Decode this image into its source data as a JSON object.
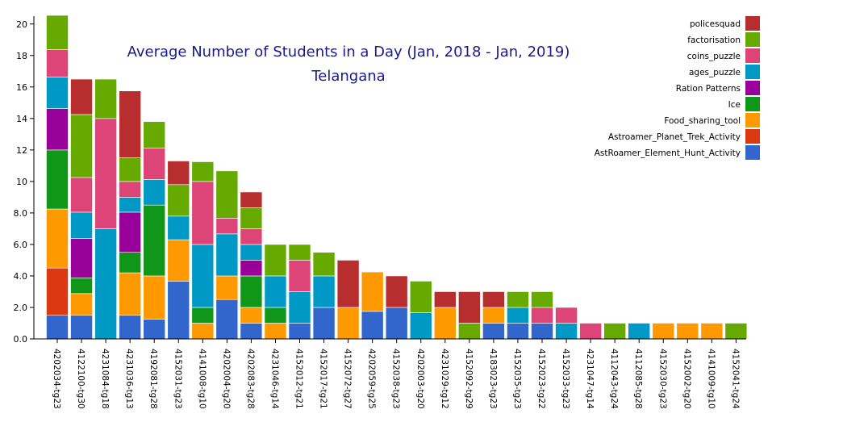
{
  "chart_data": {
    "type": "bar",
    "stacked": true,
    "title": "Average Number of Students in a Day (Jan, 2018 - Jan, 2019)",
    "subtitle": "Telangana",
    "ylim": [
      0,
      20.5
    ],
    "yticks": [
      "0.0",
      "2.0",
      "4.0",
      "6.0",
      "8.0",
      "10",
      "12",
      "14",
      "16",
      "18",
      "20"
    ],
    "yticks_values": [
      0,
      2,
      4,
      6,
      8,
      10,
      12,
      14,
      16,
      18,
      20
    ],
    "grid": false,
    "legend_position": "top-right",
    "categories": [
      "4202034-tg23",
      "4122100-tg30",
      "4231084-tg18",
      "4231036-tg13",
      "4192081-tg28",
      "4152031-tg23",
      "4141008-tg10",
      "4202004-tg20",
      "4202083-tg28",
      "4231046-tg14",
      "4152012-tg21",
      "4152017-tg21",
      "4152072-tg27",
      "4202059-tg25",
      "4152038-tg23",
      "4202003-tg20",
      "4231029-tg12",
      "4152092-tg29",
      "4183023-tg23",
      "4152035-tg23",
      "4152023-tg22",
      "4152033-tg23",
      "4231047-tg14",
      "4112043-tg24",
      "4112085-tg28",
      "4152030-tg23",
      "4152002-tg20",
      "4141009-tg10",
      "4152041-tg24"
    ],
    "category_labels_visible": [
      "4202034-tg23",
      "4122100-tg30",
      "4231084-tg18",
      "4231036-tg13",
      "4192081-tg28",
      "4152031-tg23",
      "4141008-tg10",
      "4202004-tg20",
      "4202083-tg28",
      "4231046-tg14",
      "4152012-tg21",
      "4152017-tg21",
      "4152072-tg27",
      "4202059-tg25",
      "4152038-tg23",
      "4202003-tg20",
      "4231029-tg12",
      "4152092-tg29",
      "4183023-tg23",
      "4152035-tg23",
      "4152023-tg22",
      "4152033-tg23",
      "4231047-tg14",
      "4112043-tg24",
      "4112085-tg28",
      "4152030-tg23",
      "4152002-tg20",
      "4141009-tg10",
      "4152041-tg24"
    ],
    "series": [
      {
        "name": "AstRoamer_Element_Hunt_Activity",
        "color": "#3366cc",
        "values": [
          1.5,
          1.5,
          0,
          1.5,
          1.25,
          3.67,
          0,
          2.5,
          1.0,
          0,
          1.0,
          2.0,
          0,
          1.75,
          2.0,
          0,
          0,
          0,
          1.0,
          1.0,
          1.0,
          0,
          0,
          0,
          0,
          0,
          0,
          0,
          0
        ]
      },
      {
        "name": "Astroamer_Planet_Trek_Activity",
        "color": "#dc3912",
        "values": [
          3.0,
          0,
          0,
          0,
          0,
          0,
          0,
          0,
          0,
          0,
          0,
          0,
          0,
          0,
          0,
          0,
          0,
          0,
          0,
          0,
          0,
          0,
          0,
          0,
          0,
          0,
          0,
          0,
          0
        ]
      },
      {
        "name": "Food_sharing_tool",
        "color": "#ff9900",
        "values": [
          3.75,
          1.38,
          0,
          2.7,
          2.75,
          2.63,
          1.0,
          1.5,
          1.0,
          1.0,
          0,
          0,
          2.0,
          2.5,
          0,
          0,
          2.0,
          0,
          1.0,
          0,
          0,
          0,
          0,
          0,
          0,
          1.0,
          1.0,
          1.0,
          0
        ]
      },
      {
        "name": "Ice",
        "color": "#109618",
        "values": [
          3.75,
          1.0,
          0,
          1.3,
          4.5,
          0,
          1.0,
          0,
          2.0,
          1.0,
          0,
          0,
          0,
          0,
          0,
          0,
          0,
          0,
          0,
          0,
          0,
          0,
          0,
          0,
          0,
          0,
          0,
          0,
          0
        ]
      },
      {
        "name": "Ration Patterns",
        "color": "#990099",
        "values": [
          2.63,
          2.5,
          0,
          2.55,
          0,
          0,
          0,
          0,
          1.0,
          0,
          0,
          0,
          0,
          0,
          0,
          0,
          0,
          0,
          0,
          0,
          0,
          0,
          0,
          0,
          0,
          0,
          0,
          0,
          0
        ]
      },
      {
        "name": "ages_puzzle",
        "color": "#0099c6",
        "values": [
          2.0,
          1.67,
          7.0,
          0.95,
          1.63,
          1.5,
          4.0,
          2.67,
          1.0,
          2.0,
          2.0,
          2.0,
          0,
          0,
          0,
          1.67,
          0,
          0,
          0,
          1.0,
          0,
          1.0,
          0,
          0,
          1.0,
          0,
          0,
          0,
          0
        ]
      },
      {
        "name": "coins_puzzle",
        "color": "#dd4477",
        "values": [
          1.75,
          2.2,
          7.0,
          1.0,
          2.0,
          0,
          4.0,
          1.0,
          1.0,
          0,
          2.0,
          0,
          0,
          0,
          0,
          0,
          0,
          0,
          0,
          0,
          1.0,
          1.0,
          1.0,
          0,
          0,
          0,
          0,
          0,
          0
        ]
      },
      {
        "name": "factorisation",
        "color": "#66aa00",
        "values": [
          2.17,
          4.0,
          2.5,
          1.5,
          1.67,
          2.0,
          1.25,
          3.0,
          1.33,
          2.0,
          1.0,
          1.5,
          0,
          0,
          0,
          2.0,
          0,
          1.0,
          0,
          1.0,
          1.0,
          0,
          0,
          1.0,
          0,
          0,
          0,
          0,
          1.0
        ]
      },
      {
        "name": "policesquad",
        "color": "#b82e2e",
        "values": [
          0,
          2.25,
          0,
          4.25,
          0,
          1.5,
          0,
          0,
          1.0,
          0,
          0,
          0,
          3.0,
          0,
          2.0,
          0,
          1.0,
          2.0,
          1.0,
          0,
          0,
          0,
          0,
          0,
          0,
          0,
          0,
          0,
          0
        ]
      }
    ]
  }
}
